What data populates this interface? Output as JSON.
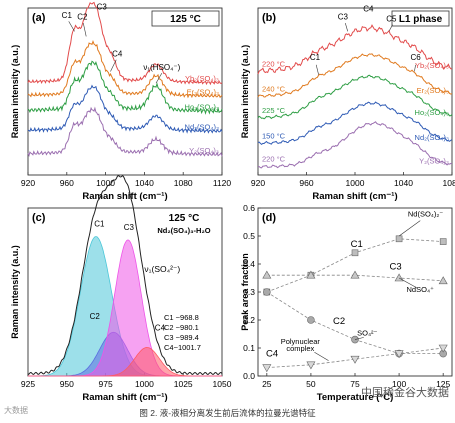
{
  "caption": "图 2. 液-液相分离发生前后流体的拉曼光谱特征",
  "watermark_left": "大数据",
  "watermark_right": "中国稀金谷大数据",
  "colors": {
    "Yb": "#e24b4b",
    "Er": "#e07a1f",
    "Ho": "#2e9e44",
    "Nd": "#2f5bb5",
    "Y": "#9b6fb0",
    "C1": "#4cc7d8",
    "C2": "#5b6ee0",
    "C3": "#ee55e8",
    "C4": "#ff5a66",
    "total": "#222222"
  },
  "chart_data": [
    {
      "panel": "(a)",
      "type": "line",
      "box_label": "125 °C",
      "xlabel": "Raman shift (cm⁻¹)",
      "ylabel": "Raman intensity (a.u.)",
      "xlim": [
        920,
        1120
      ],
      "xticks": [
        920,
        960,
        1000,
        1040,
        1080,
        1120
      ],
      "ylim": [
        0,
        1
      ],
      "peaks": {
        "C1": 968,
        "C2": 980,
        "C3": 990,
        "C4": 1005,
        "HSO4": 1052
      },
      "peak_labels": [
        {
          "text": "C1",
          "x": 960,
          "y": 0.94
        },
        {
          "text": "C2",
          "x": 976,
          "y": 0.93
        },
        {
          "text": "C3",
          "x": 996,
          "y": 0.99
        },
        {
          "text": "C4",
          "x": 1012,
          "y": 0.71
        },
        {
          "text": "ν₁(HSO₄⁻)",
          "x": 1058,
          "y": 0.63
        }
      ],
      "series": [
        {
          "name": "Yb₂(SO₄)₃",
          "color": "Yb",
          "base": 0.55,
          "amps": [
            0.3,
            0.26,
            0.4,
            0.14,
            0.1
          ],
          "ripple": 0.006
        },
        {
          "name": "Er₂(SO₄)₃",
          "color": "Er",
          "base": 0.47,
          "amps": [
            0.18,
            0.17,
            0.26,
            0.09,
            0.11
          ],
          "ripple": 0.007
        },
        {
          "name": "Ho₂(SO₄)₃",
          "color": "Ho",
          "base": 0.38,
          "amps": [
            0.16,
            0.15,
            0.24,
            0.08,
            0.14
          ],
          "ripple": 0.009
        },
        {
          "name": "Nd₂(SO₄)₃",
          "color": "Nd",
          "base": 0.26,
          "amps": [
            0.14,
            0.13,
            0.22,
            0.07,
            0.08
          ],
          "ripple": 0.007
        },
        {
          "name": "Y₂(SO₄)₃",
          "color": "Y",
          "base": 0.12,
          "amps": [
            0.16,
            0.14,
            0.22,
            0.07,
            0.08
          ],
          "ripple": 0.008
        }
      ]
    },
    {
      "panel": "(b)",
      "type": "line",
      "box_label": "L1 phase",
      "xlabel": "Raman shift (cm⁻¹)",
      "ylabel": "Raman intensity (a.u.)",
      "xlim": [
        920,
        1080
      ],
      "xticks": [
        920,
        960,
        1000,
        1040,
        1080
      ],
      "ylim": [
        0,
        1
      ],
      "peak_labels": [
        {
          "text": "C1",
          "x": 967,
          "y": 0.69
        },
        {
          "text": "C3",
          "x": 990,
          "y": 0.93
        },
        {
          "text": "C4",
          "x": 1011,
          "y": 0.98
        },
        {
          "text": "C5",
          "x": 1030,
          "y": 0.92
        },
        {
          "text": "C6",
          "x": 1050,
          "y": 0.69
        }
      ],
      "series": [
        {
          "name": "Yb₂(SO₄)₃",
          "temp": "220 °C",
          "color": "Yb",
          "base": 0.62,
          "amp": 0.26,
          "center": 1012,
          "width": 30,
          "ripple": 0.012
        },
        {
          "name": "Er₂(SO₄)₃",
          "temp": "240 °C",
          "color": "Er",
          "base": 0.47,
          "amp": 0.25,
          "center": 1012,
          "width": 30,
          "ripple": 0.006
        },
        {
          "name": "Ho₂(SO₄)₃",
          "temp": "225 °C",
          "color": "Ho",
          "base": 0.34,
          "amp": 0.25,
          "center": 1012,
          "width": 30,
          "ripple": 0.006
        },
        {
          "name": "Nd₂(SO₄)₃",
          "temp": "150 °C",
          "color": "Nd",
          "base": 0.19,
          "amp": 0.24,
          "center": 1014,
          "width": 28,
          "ripple": 0.006
        },
        {
          "name": "Y₂(SO₄)₃",
          "temp": "220 °C",
          "color": "Y",
          "base": 0.05,
          "amp": 0.26,
          "center": 1016,
          "width": 26,
          "ripple": 0.006
        }
      ]
    },
    {
      "panel": "(c)",
      "type": "area",
      "box_label": "125 °C",
      "box_sublabel": "Nd₂(SO₄)₃-H₂O",
      "xlabel": "Raman shift (cm⁻¹)",
      "ylabel": "Raman intensity (a.u.)",
      "xlim": [
        925,
        1050
      ],
      "xticks": [
        925,
        950,
        975,
        1000,
        1025,
        1050
      ],
      "ylim": [
        0,
        1
      ],
      "band_label": "ν₁(SO₄²⁻)",
      "components": [
        {
          "name": "C1",
          "center": 968.8,
          "amp": 0.83,
          "width": 10,
          "color": "C1",
          "label_x": 971,
          "label_y": 0.89
        },
        {
          "name": "C2",
          "center": 980.1,
          "amp": 0.26,
          "width": 9,
          "color": "C2",
          "label_x": 968,
          "label_y": 0.34
        },
        {
          "name": "C3",
          "center": 989.4,
          "amp": 0.81,
          "width": 8.5,
          "color": "C3",
          "label_x": 990,
          "label_y": 0.87
        },
        {
          "name": "C4",
          "center": 1001.7,
          "amp": 0.17,
          "width": 8,
          "color": "C4",
          "label_x": 1010,
          "label_y": 0.27
        }
      ],
      "legend": [
        "C1 ~968.8",
        "C2 ~980.1",
        "C3 ~989.4",
        "C4~1001.7"
      ]
    },
    {
      "panel": "(d)",
      "type": "scatter",
      "xlabel": "Temperature (°C)",
      "ylabel": "Peak area fraction",
      "xlim": [
        20,
        130
      ],
      "ylim": [
        0,
        0.6
      ],
      "xticks": [
        25,
        50,
        75,
        100,
        125
      ],
      "yticks": [
        0.0,
        0.1,
        0.2,
        0.3,
        0.4,
        0.5,
        0.6
      ],
      "ytick_labels": [
        "0.0",
        "0.1",
        "0.2",
        "0.3",
        "0.4",
        "0.5",
        "0.6"
      ],
      "series": [
        {
          "name": "C1",
          "marker": "square",
          "x": [
            25,
            50,
            75,
            100,
            125
          ],
          "y": [
            0.3,
            0.36,
            0.44,
            0.49,
            0.48
          ]
        },
        {
          "name": "C2",
          "marker": "circle",
          "x": [
            25,
            50,
            75,
            100,
            125
          ],
          "y": [
            0.3,
            0.2,
            0.13,
            0.08,
            0.08
          ]
        },
        {
          "name": "C3",
          "marker": "triangle-up",
          "x": [
            25,
            50,
            75,
            100,
            125
          ],
          "y": [
            0.36,
            0.36,
            0.36,
            0.35,
            0.34
          ]
        },
        {
          "name": "C4",
          "marker": "triangle-down",
          "x": [
            25,
            50,
            75,
            100,
            125
          ],
          "y": [
            0.03,
            0.04,
            0.06,
            0.08,
            0.1
          ]
        }
      ],
      "annotations": [
        {
          "text": "C1",
          "x": 76,
          "y": 0.46
        },
        {
          "text": "C3",
          "x": 98,
          "y": 0.38
        },
        {
          "text": "C2",
          "x": 66,
          "y": 0.185
        },
        {
          "text": "C4",
          "x": 28,
          "y": 0.07
        },
        {
          "text": "Nd(SO₄)₂⁻",
          "x": 115,
          "y": 0.57
        },
        {
          "text": "NdSO₄⁺",
          "x": 112,
          "y": 0.3
        },
        {
          "text": "SO₄²⁻",
          "x": 82,
          "y": 0.145
        },
        {
          "text": "Polynuclear",
          "x": 44,
          "y": 0.115
        },
        {
          "text": "complex",
          "x": 44,
          "y": 0.09
        }
      ]
    }
  ]
}
